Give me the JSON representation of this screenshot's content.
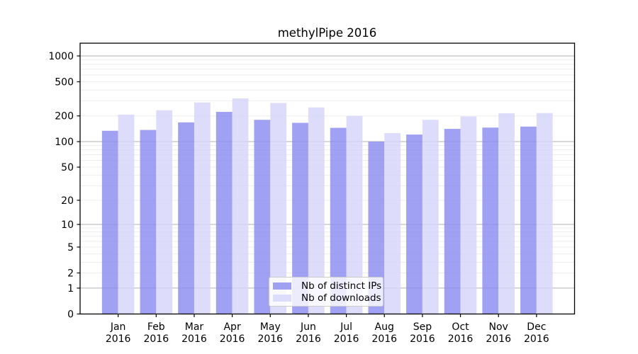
{
  "chart_data": {
    "type": "bar",
    "title": "methylPipe 2016",
    "categories": [
      "Jan",
      "Feb",
      "Mar",
      "Apr",
      "May",
      "Jun",
      "Jul",
      "Aug",
      "Sep",
      "Oct",
      "Nov",
      "Dec"
    ],
    "x_year_label": "2016",
    "series": [
      {
        "name": "Nb of distinct IPs",
        "color": "rgba(138,138,240,0.8)",
        "values": [
          134,
          137,
          168,
          223,
          180,
          166,
          145,
          100,
          121,
          141,
          146,
          150
        ]
      },
      {
        "name": "Nb of downloads",
        "color": "rgba(212,212,250,0.8)",
        "values": [
          207,
          233,
          287,
          320,
          283,
          251,
          200,
          126,
          180,
          197,
          215,
          216
        ]
      }
    ],
    "yscale": "log1p",
    "y_ticks": [
      0,
      1,
      2,
      5,
      10,
      20,
      50,
      100,
      200,
      500,
      1000
    ],
    "ylim": [
      0,
      1400
    ],
    "grid": true,
    "legend_position": "lower-center",
    "colors": {
      "major_grid": "#b2b2b6",
      "minor_grid": "#ededf0",
      "axis": "#000000",
      "background": "#ffffff"
    }
  }
}
